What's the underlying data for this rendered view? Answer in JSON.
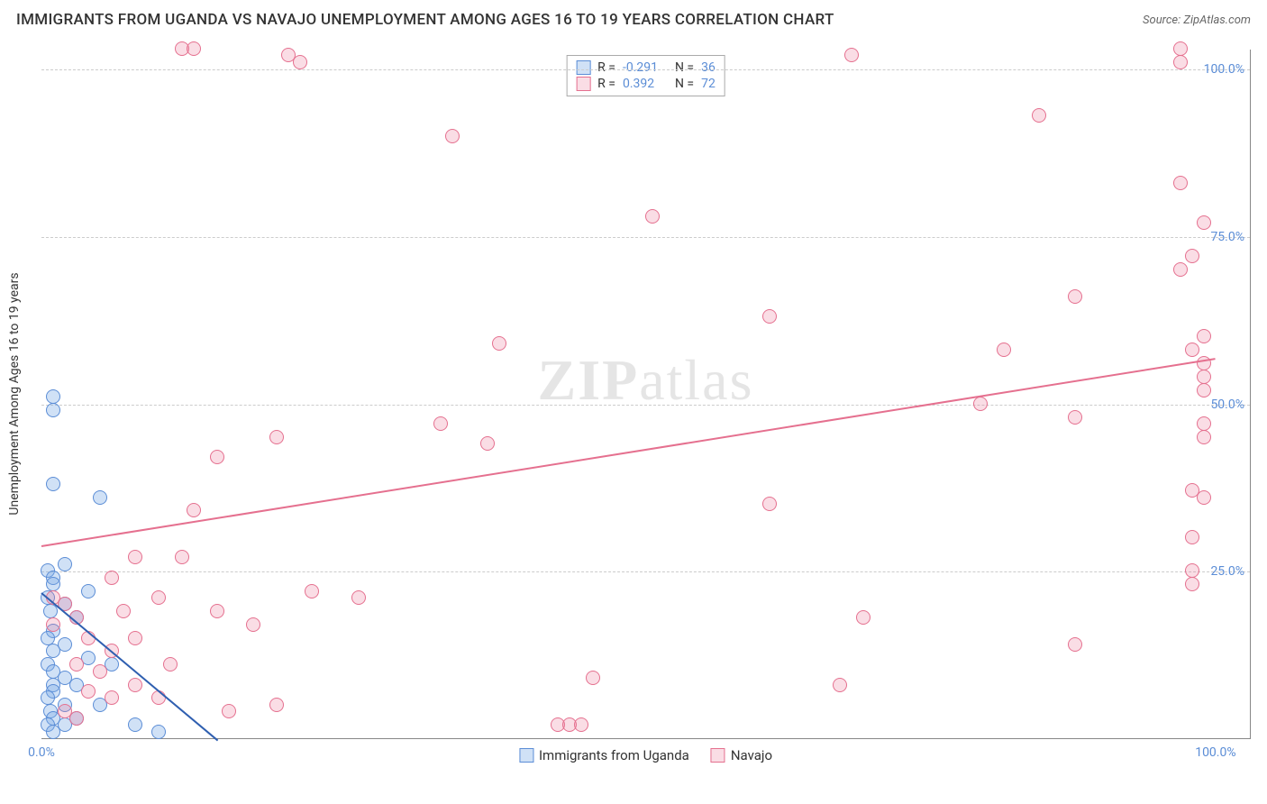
{
  "title": "IMMIGRANTS FROM UGANDA VS NAVAJO UNEMPLOYMENT AMONG AGES 16 TO 19 YEARS CORRELATION CHART",
  "source": "Source: ZipAtlas.com",
  "y_label": "Unemployment Among Ages 16 to 19 years",
  "watermark": {
    "bold": "ZIP",
    "rest": "atlas"
  },
  "chart": {
    "type": "scatter",
    "xlim": [
      0,
      103
    ],
    "ylim": [
      0,
      103
    ],
    "background_color": "#ffffff",
    "grid_color": "#cccccc",
    "y_ticks": [
      {
        "v": 25,
        "label": "25.0%"
      },
      {
        "v": 50,
        "label": "50.0%"
      },
      {
        "v": 75,
        "label": "75.0%"
      },
      {
        "v": 100,
        "label": "100.0%"
      }
    ],
    "x_ticks": [
      {
        "v": 0,
        "label": "0.0%"
      },
      {
        "v": 100,
        "label": "100.0%"
      }
    ],
    "series": [
      {
        "name": "Immigrants from Uganda",
        "color_fill": "rgba(120,170,230,0.35)",
        "color_stroke": "#5b8dd6",
        "trend_color": "#2f5fb0",
        "R": "-0.291",
        "N": "36",
        "trend": {
          "x1": 0,
          "y1": 22,
          "x2": 15,
          "y2": 0
        },
        "points": [
          [
            1,
            51
          ],
          [
            1,
            49
          ],
          [
            1,
            38
          ],
          [
            5,
            36
          ],
          [
            2,
            26
          ],
          [
            0.5,
            25
          ],
          [
            1,
            24
          ],
          [
            1,
            23
          ],
          [
            4,
            22
          ],
          [
            0.5,
            21
          ],
          [
            2,
            20
          ],
          [
            0.8,
            19
          ],
          [
            3,
            18
          ],
          [
            1,
            16
          ],
          [
            0.5,
            15
          ],
          [
            2,
            14
          ],
          [
            1,
            13
          ],
          [
            4,
            12
          ],
          [
            0.5,
            11
          ],
          [
            6,
            11
          ],
          [
            1,
            10
          ],
          [
            2,
            9
          ],
          [
            1,
            8
          ],
          [
            3,
            8
          ],
          [
            1,
            7
          ],
          [
            0.5,
            6
          ],
          [
            5,
            5
          ],
          [
            2,
            5
          ],
          [
            0.8,
            4
          ],
          [
            3,
            3
          ],
          [
            1,
            3
          ],
          [
            8,
            2
          ],
          [
            10,
            1
          ],
          [
            2,
            2
          ],
          [
            0.5,
            2
          ],
          [
            1,
            1
          ]
        ]
      },
      {
        "name": "Navajo",
        "color_fill": "rgba(235,120,150,0.25)",
        "color_stroke": "#e5708f",
        "trend_color": "#e5708f",
        "R": "0.392",
        "N": "72",
        "trend": {
          "x1": 0,
          "y1": 29,
          "x2": 100,
          "y2": 57
        },
        "points": [
          [
            12,
            103
          ],
          [
            13,
            103
          ],
          [
            21,
            102
          ],
          [
            22,
            101
          ],
          [
            69,
            102
          ],
          [
            97,
            103
          ],
          [
            97,
            101
          ],
          [
            85,
            93
          ],
          [
            52,
            78
          ],
          [
            35,
            90
          ],
          [
            62,
            63
          ],
          [
            97,
            83
          ],
          [
            99,
            77
          ],
          [
            39,
            59
          ],
          [
            98,
            72
          ],
          [
            97,
            70
          ],
          [
            15,
            42
          ],
          [
            88,
            66
          ],
          [
            20,
            45
          ],
          [
            82,
            58
          ],
          [
            99,
            60
          ],
          [
            13,
            34
          ],
          [
            99,
            45
          ],
          [
            34,
            47
          ],
          [
            80,
            50
          ],
          [
            38,
            44
          ],
          [
            98,
            58
          ],
          [
            99,
            56
          ],
          [
            99,
            54
          ],
          [
            99,
            52
          ],
          [
            88,
            48
          ],
          [
            99,
            47
          ],
          [
            27,
            21
          ],
          [
            23,
            22
          ],
          [
            98,
            37
          ],
          [
            62,
            35
          ],
          [
            6,
            24
          ],
          [
            99,
            36
          ],
          [
            10,
            21
          ],
          [
            15,
            19
          ],
          [
            7,
            19
          ],
          [
            18,
            17
          ],
          [
            8,
            15
          ],
          [
            70,
            18
          ],
          [
            98,
            30
          ],
          [
            6,
            13
          ],
          [
            3,
            18
          ],
          [
            11,
            11
          ],
          [
            4,
            15
          ],
          [
            68,
            8
          ],
          [
            47,
            9
          ],
          [
            88,
            14
          ],
          [
            98,
            25
          ],
          [
            98,
            23
          ],
          [
            10,
            6
          ],
          [
            8,
            8
          ],
          [
            5,
            10
          ],
          [
            3,
            11
          ],
          [
            16,
            4
          ],
          [
            20,
            5
          ],
          [
            6,
            6
          ],
          [
            4,
            7
          ],
          [
            44,
            2
          ],
          [
            45,
            2
          ],
          [
            46,
            2
          ],
          [
            2,
            4
          ],
          [
            3,
            3
          ],
          [
            1,
            17
          ],
          [
            2,
            20
          ],
          [
            1,
            21
          ],
          [
            12,
            27
          ],
          [
            8,
            27
          ]
        ]
      }
    ],
    "marker_radius": 8,
    "tick_fontsize": 14,
    "title_fontsize": 17
  },
  "legend_top": {
    "rows": [
      {
        "swatch": 0,
        "R_label": "R =",
        "R": "-0.291",
        "N_label": "N =",
        "N": "36"
      },
      {
        "swatch": 1,
        "R_label": "R =",
        "R": "0.392",
        "N_label": "N =",
        "N": "72"
      }
    ]
  },
  "legend_bottom": [
    {
      "swatch": 0,
      "label": "Immigrants from Uganda"
    },
    {
      "swatch": 1,
      "label": "Navajo"
    }
  ]
}
